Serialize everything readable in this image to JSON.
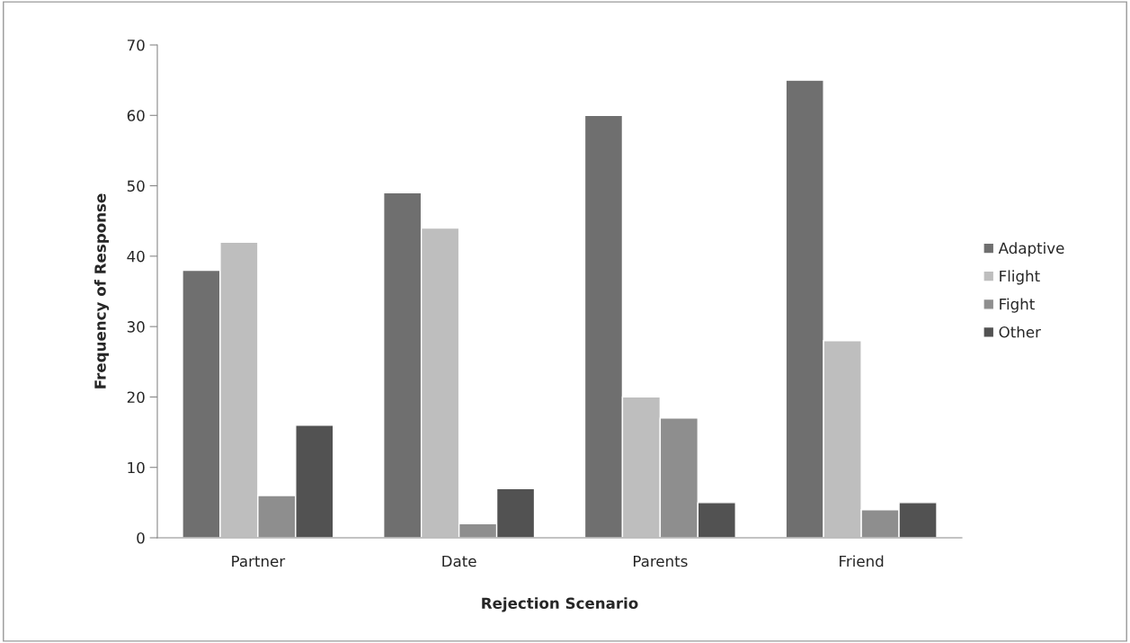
{
  "chart_data": {
    "type": "bar",
    "xlabel": "Rejection Scenario",
    "ylabel": "Frequency of Response",
    "categories": [
      "Partner",
      "Date",
      "Parents",
      "Friend"
    ],
    "series": [
      {
        "name": "Adaptive",
        "color": "#6f6f6f",
        "values": [
          38,
          49,
          60,
          65
        ]
      },
      {
        "name": "Flight",
        "color": "#bebebe",
        "values": [
          42,
          44,
          20,
          28
        ]
      },
      {
        "name": "Fight",
        "color": "#8e8e8e",
        "values": [
          6,
          2,
          17,
          4
        ]
      },
      {
        "name": "Other",
        "color": "#525252",
        "values": [
          16,
          7,
          5,
          5
        ]
      }
    ],
    "ylim": [
      0,
      70
    ],
    "yticks": [
      0,
      10,
      20,
      30,
      40,
      50,
      60,
      70
    ],
    "grid": false,
    "legend": "right"
  }
}
